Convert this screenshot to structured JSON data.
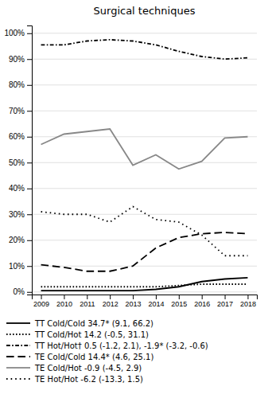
{
  "chart_data": {
    "type": "line",
    "title": "Surgical techniques",
    "x": [
      2009,
      2010,
      2011,
      2012,
      2013,
      2014,
      2015,
      2016,
      2017,
      2018
    ],
    "xlim": [
      2008.6,
      2018.4
    ],
    "xticks": [
      2009,
      2010,
      2011,
      2012,
      2013,
      2014,
      2015,
      2016,
      2017,
      2018
    ],
    "ylim": [
      -1,
      103
    ],
    "yticks": [
      {
        "value": 0,
        "label": "0%"
      },
      {
        "value": 10,
        "label": "10%"
      },
      {
        "value": 20,
        "label": "20%"
      },
      {
        "value": 30,
        "label": "30%"
      },
      {
        "value": 40,
        "label": "40%"
      },
      {
        "value": 50,
        "label": "50%"
      },
      {
        "value": 60,
        "label": "60%"
      },
      {
        "value": 70,
        "label": "70%"
      },
      {
        "value": 80,
        "label": "80%"
      },
      {
        "value": 90,
        "label": "90%"
      },
      {
        "value": 100,
        "label": "100%"
      }
    ],
    "grid": true,
    "legend": "bottom",
    "series": [
      {
        "name": "TT Cold/Cold 34.7* (9.1, 66.2)",
        "color": "#000000",
        "line_style": "solid",
        "values": [
          0.5,
          0.5,
          0.5,
          0.5,
          0.5,
          1.0,
          2.0,
          4.0,
          5.0,
          5.5
        ]
      },
      {
        "name": "TT Cold/Hot 14.2 (-0.5, 31.1)",
        "color": "#000000",
        "line_style": "dotted",
        "values": [
          2.0,
          2.0,
          2.0,
          2.0,
          2.0,
          2.0,
          2.5,
          3.0,
          3.0,
          3.0
        ]
      },
      {
        "name": "TT Hot/Hot† 0.5 (-1.2, 2.1), -1.9* (-3.2, -0.6)",
        "color": "#000000",
        "line_style": "dashdot",
        "values": [
          95.5,
          95.5,
          97.0,
          97.5,
          97.0,
          95.5,
          93.0,
          91.0,
          90.0,
          90.5
        ]
      },
      {
        "name": "TE Cold/Cold 14.4* (4.6, 25.1)",
        "color": "#000000",
        "line_style": "dashed",
        "values": [
          10.5,
          9.5,
          8.0,
          8.0,
          10.0,
          17.0,
          21.0,
          22.5,
          23.0,
          22.5
        ]
      },
      {
        "name": "TE Cold/Hot -0.9 (-4.5, 2.9)",
        "color": "#888888",
        "line_style": "solid",
        "values": [
          57.0,
          61.0,
          62.0,
          63.0,
          49.0,
          53.0,
          47.5,
          50.5,
          59.5,
          60.0
        ]
      },
      {
        "name": "TE Hot/Hot -6.2 (-13.3, 1.5)",
        "color": "#000000",
        "line_style": "loosely-dotted",
        "values": [
          31.0,
          30.0,
          30.0,
          27.0,
          33.0,
          28.0,
          27.0,
          22.0,
          14.0,
          14.0
        ]
      }
    ]
  }
}
